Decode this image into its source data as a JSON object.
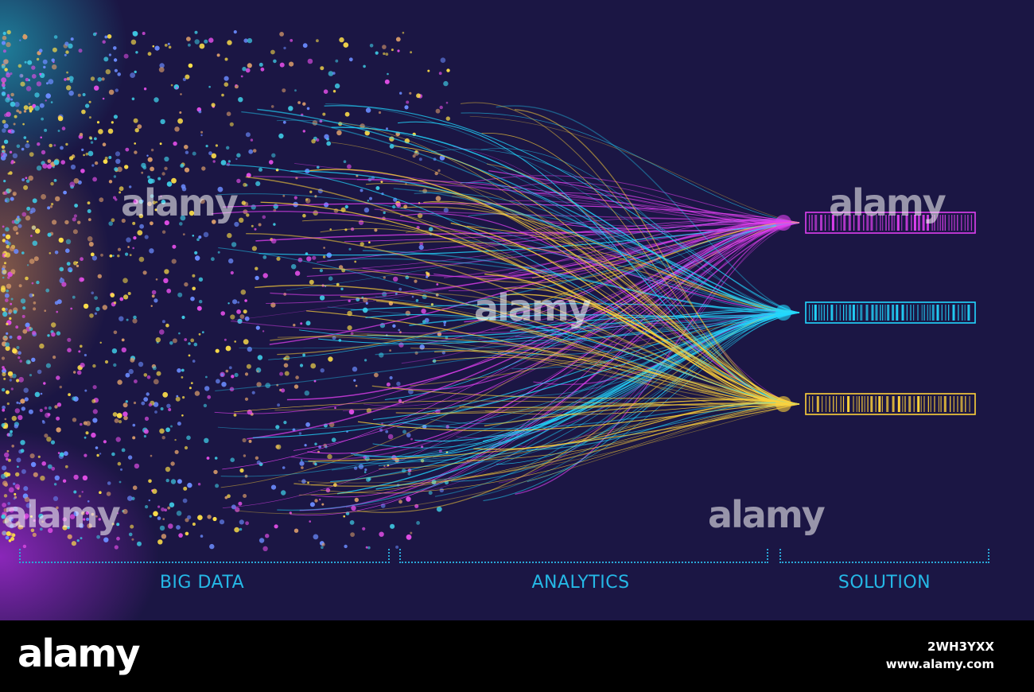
{
  "diagram": {
    "sections": [
      {
        "id": "big-data",
        "label": "BIG DATA"
      },
      {
        "id": "analytics",
        "label": "ANALYTICS"
      },
      {
        "id": "solution",
        "label": "SOLUTION"
      }
    ],
    "outputs": [
      {
        "id": "magenta",
        "color": "#e040f0"
      },
      {
        "id": "cyan",
        "color": "#22d8ff"
      },
      {
        "id": "yellow",
        "color": "#ffd23a"
      }
    ],
    "palette": {
      "background": "#1b1644",
      "label_color": "#25b8e6",
      "dot_colors": [
        "#3ec6e0",
        "#e14ee6",
        "#d69a6a",
        "#6b8cff",
        "#ffe04a"
      ]
    }
  },
  "watermark": {
    "text": "alamy"
  },
  "footer": {
    "logo": "alamy",
    "image_id": "2WH3YXX",
    "site": "www.alamy.com"
  }
}
